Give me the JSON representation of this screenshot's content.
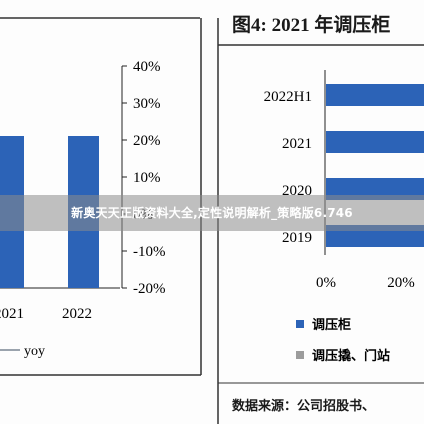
{
  "banner": {
    "text": "新奥天天正版资料大全,定性说明解析_策略版6.746"
  },
  "chart_data": [
    {
      "type": "bar",
      "title": "",
      "categories": [
        "2021",
        "2022"
      ],
      "series": [
        {
          "name": "",
          "values": [
            null,
            null
          ]
        },
        {
          "name": "yoy",
          "values": [
            null,
            null
          ]
        }
      ],
      "y2_ticks": [
        "40%",
        "30%",
        "20%",
        "10%",
        "0%",
        "-10%",
        "-20%"
      ],
      "y2lim": [
        -20,
        40
      ],
      "legend": [
        "yoy"
      ],
      "grid": false
    },
    {
      "type": "bar",
      "orientation": "horizontal",
      "title": "图4:  2021 年调压柜",
      "categories": [
        "2022H1",
        "2021",
        "2020",
        "2019"
      ],
      "series": [
        {
          "name": "调压柜",
          "values": [
            null,
            null,
            null,
            null
          ]
        }
      ],
      "x_ticks": [
        "0%",
        "20%"
      ],
      "xlim": [
        0,
        100
      ],
      "legend": [
        "调压柜",
        "调压撬、门站"
      ],
      "colors": {
        "bar": "#2c63b7",
        "legend2": "#9c9c9c"
      },
      "source": "数据来源：公司招股书、"
    }
  ]
}
